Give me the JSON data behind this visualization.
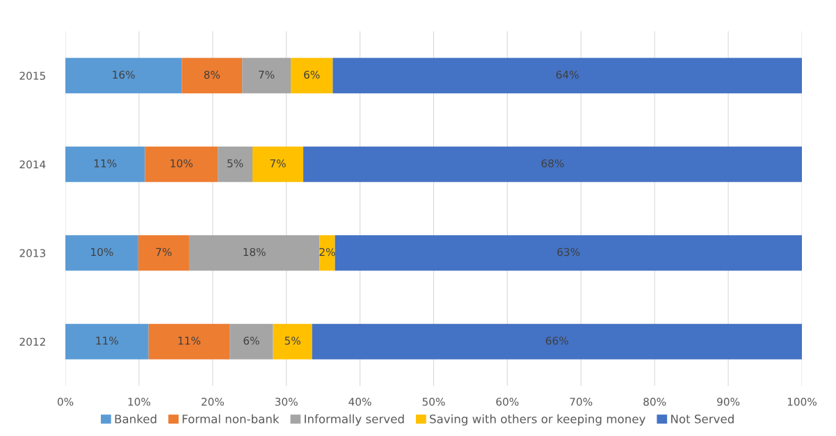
{
  "chart_data": {
    "type": "bar",
    "orientation": "horizontal",
    "stacked": true,
    "categories": [
      "2015",
      "2014",
      "2013",
      "2012"
    ],
    "series": [
      {
        "name": "Banked",
        "color": "#5b9bd5",
        "values": [
          15.8,
          10.8,
          9.9,
          11.3
        ],
        "value_labels": [
          "16%",
          "11%",
          "10%",
          "11%"
        ]
      },
      {
        "name": "Formal non-bank",
        "color": "#ed7d31",
        "values": [
          8.2,
          9.9,
          6.9,
          11.0
        ],
        "value_labels": [
          "8%",
          "10%",
          "7%",
          "11%"
        ]
      },
      {
        "name": "Informally served",
        "color": "#a5a5a5",
        "values": [
          6.6,
          4.7,
          17.7,
          5.9
        ],
        "value_labels": [
          "7%",
          "5%",
          "18%",
          "6%"
        ]
      },
      {
        "name": "Saving with others or keeping money",
        "color": "#ffc000",
        "values": [
          5.7,
          6.9,
          2.1,
          5.3
        ],
        "value_labels": [
          "6%",
          "7%",
          "2%",
          "5%"
        ]
      },
      {
        "name": "Not Served",
        "color": "#4472c4",
        "values": [
          63.7,
          67.7,
          63.4,
          66.5
        ],
        "value_labels": [
          "64%",
          "68%",
          "63%",
          "66%"
        ]
      }
    ],
    "xlim": [
      0,
      100
    ],
    "xticks": [
      {
        "value": 0,
        "label": "0%"
      },
      {
        "value": 10,
        "label": "10%"
      },
      {
        "value": 20,
        "label": "20%"
      },
      {
        "value": 30,
        "label": "30%"
      },
      {
        "value": 40,
        "label": "40%"
      },
      {
        "value": 50,
        "label": "50%"
      },
      {
        "value": 60,
        "label": "60%"
      },
      {
        "value": 70,
        "label": "70%"
      },
      {
        "value": 80,
        "label": "80%"
      },
      {
        "value": 90,
        "label": "90%"
      },
      {
        "value": 100,
        "label": "100%"
      }
    ],
    "grid": "x",
    "legend": "bottom"
  }
}
